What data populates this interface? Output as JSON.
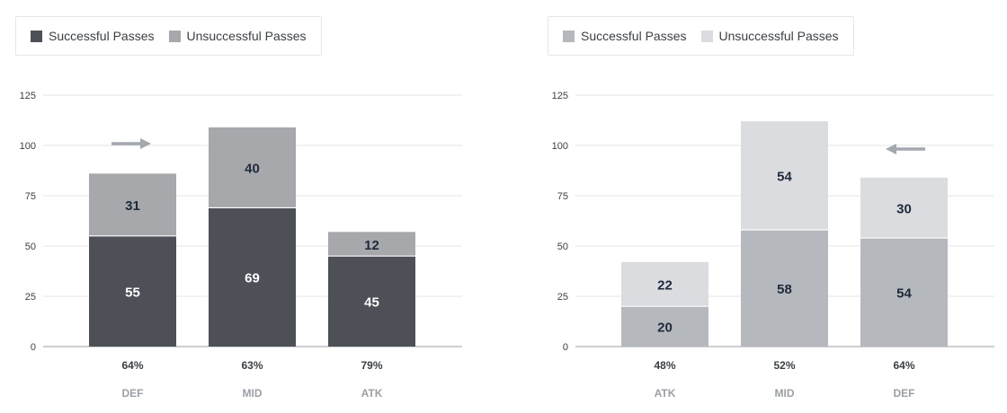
{
  "chart_data": [
    {
      "type": "bar",
      "stacked": true,
      "categories": [
        "DEF",
        "MID",
        "ATK"
      ],
      "percent_labels": [
        "64%",
        "63%",
        "79%"
      ],
      "series": [
        {
          "name": "Successful Passes",
          "values": [
            55,
            69,
            45
          ],
          "color": "#4d5157",
          "label_color": "#ffffff"
        },
        {
          "name": "Unsuccessful Passes",
          "values": [
            31,
            40,
            12
          ],
          "color": "#a6a8ac",
          "label_color": "#1f2a3a"
        }
      ],
      "ylim": [
        0,
        125
      ],
      "yticks": [
        0,
        25,
        50,
        75,
        100,
        125
      ],
      "grid": true,
      "legend": "top-left",
      "direction_arrow": "right"
    },
    {
      "type": "bar",
      "stacked": true,
      "categories": [
        "ATK",
        "MID",
        "DEF"
      ],
      "percent_labels": [
        "48%",
        "52%",
        "64%"
      ],
      "series": [
        {
          "name": "Successful Passes",
          "values": [
            20,
            58,
            54
          ],
          "color": "#b5b8bd",
          "label_color": "#1f2a3a"
        },
        {
          "name": "Unsuccessful Passes",
          "values": [
            22,
            54,
            30
          ],
          "color": "#dbdcdf",
          "label_color": "#1f2a3a"
        }
      ],
      "ylim": [
        0,
        125
      ],
      "yticks": [
        0,
        25,
        50,
        75,
        100,
        125
      ],
      "grid": true,
      "legend": "top-left",
      "direction_arrow": "left"
    }
  ]
}
